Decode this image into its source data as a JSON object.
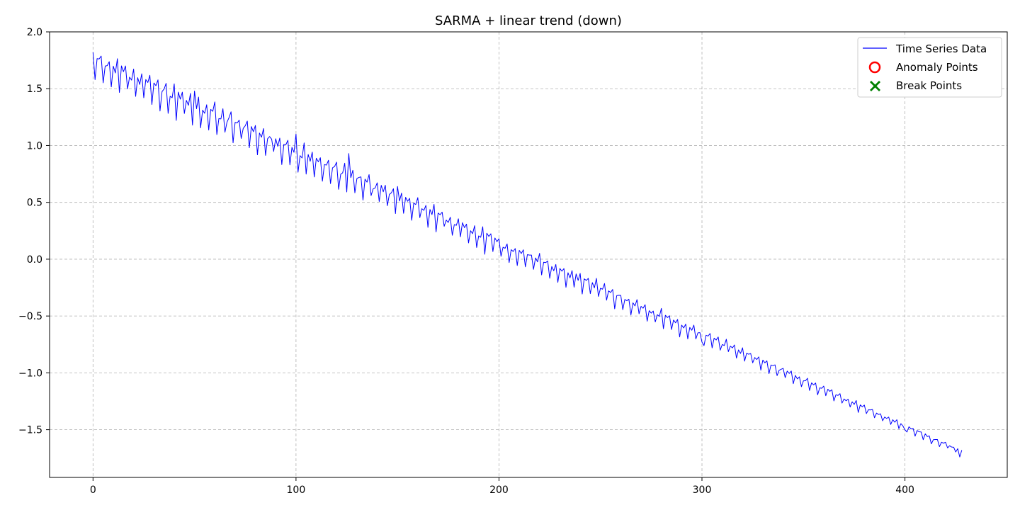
{
  "chart_data": {
    "type": "line",
    "title": "SARMA + linear trend (down)",
    "xlabel": "",
    "ylabel": "",
    "xlim": [
      -21.4,
      450.4
    ],
    "ylim": [
      -1.92,
      2.0
    ],
    "x_ticks": [
      0,
      100,
      200,
      300,
      400
    ],
    "y_ticks": [
      2.0,
      1.5,
      1.0,
      0.5,
      0.0,
      -0.5,
      -1.0,
      -1.5
    ],
    "grid": true,
    "legend_position": "top-right",
    "legend": [
      {
        "label": "Time Series Data",
        "marker": "line",
        "color": "#0000ff"
      },
      {
        "label": "Anomaly Points",
        "marker": "circle",
        "color": "#ff0000"
      },
      {
        "label": "Break Points",
        "marker": "x",
        "color": "#008000"
      }
    ],
    "series": [
      {
        "name": "Time Series Data",
        "color": "#0000ff",
        "x_start": 0,
        "x_end": 428,
        "y_start": 1.72,
        "y_end": -1.7,
        "seasonal_period": 4,
        "amplitude_start": 0.16,
        "amplitude_end": 0.03,
        "key_points": [
          [
            0,
            1.82
          ],
          [
            1,
            1.58
          ],
          [
            50,
            1.48
          ],
          [
            100,
            1.1
          ],
          [
            126,
            0.93
          ],
          [
            150,
            0.64
          ],
          [
            200,
            0.18
          ],
          [
            300,
            -0.73
          ],
          [
            400,
            -1.5
          ],
          [
            427,
            -1.74
          ],
          [
            428,
            -1.68
          ]
        ]
      }
    ],
    "anomaly_points": [],
    "break_points": []
  }
}
